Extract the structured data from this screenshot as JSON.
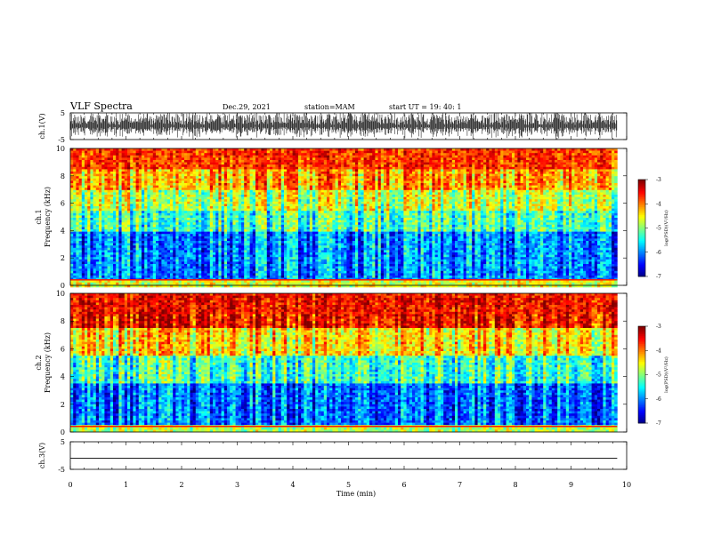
{
  "header": {
    "title": "VLF Spectra",
    "date": "Dec.29, 2021",
    "station": "station=MAM",
    "start_ut": "start UT =  19: 40: 1"
  },
  "chart_data": [
    {
      "type": "line",
      "name": "ch1_waveform",
      "ylabel": "ch.1(V)",
      "ylim": [
        -5,
        5
      ],
      "yticks": [
        5,
        -5
      ],
      "x_range": [
        0,
        9.83
      ],
      "xlim": [
        0,
        10
      ],
      "note_values": "dense impulsive sferic waveform spanning roughly -5 to +5 V"
    },
    {
      "type": "heatmap",
      "name": "ch1_spectrogram",
      "ylabel": "ch.1\nFrequency (kHz)",
      "ylim": [
        0,
        10
      ],
      "yticks": [
        0,
        2,
        4,
        6,
        8,
        10
      ],
      "xlim": [
        0,
        10
      ],
      "x_range": [
        0,
        9.83
      ],
      "bands": [
        {
          "from_khz": 0,
          "to_khz": 0.5,
          "log_psd": -4.6
        },
        {
          "from_khz": 0.5,
          "to_khz": 4,
          "log_psd": -6.0
        },
        {
          "from_khz": 4,
          "to_khz": 5.5,
          "log_psd": -5.3
        },
        {
          "from_khz": 5.5,
          "to_khz": 7,
          "log_psd": -4.8
        },
        {
          "from_khz": 7,
          "to_khz": 8.5,
          "log_psd": -4.2
        },
        {
          "from_khz": 8.5,
          "to_khz": 10,
          "log_psd": -3.7
        }
      ],
      "colorbar": {
        "label": "log(PSD)(V²/Hz)",
        "range": [
          -7,
          -3
        ],
        "ticks": [
          -3,
          -4,
          -5,
          -6,
          -7
        ]
      }
    },
    {
      "type": "heatmap",
      "name": "ch2_spectrogram",
      "ylabel": "ch.2\nFrequency (kHz)",
      "ylim": [
        0,
        10
      ],
      "yticks": [
        0,
        2,
        4,
        6,
        8,
        10
      ],
      "xlim": [
        0,
        10
      ],
      "x_range": [
        0,
        9.83
      ],
      "bands": [
        {
          "from_khz": 0,
          "to_khz": 0.5,
          "log_psd": -4.8
        },
        {
          "from_khz": 0.5,
          "to_khz": 3.5,
          "log_psd": -6.1
        },
        {
          "from_khz": 3.5,
          "to_khz": 5.5,
          "log_psd": -5.3
        },
        {
          "from_khz": 5.5,
          "to_khz": 7.5,
          "log_psd": -4.4
        },
        {
          "from_khz": 7.5,
          "to_khz": 10,
          "log_psd": -3.5
        }
      ],
      "colorbar": {
        "label": "log(PSD)(V²/Hz)",
        "range": [
          -7,
          -3
        ],
        "ticks": [
          -3,
          -4,
          -5,
          -6,
          -7
        ]
      }
    },
    {
      "type": "line",
      "name": "ch3_waveform",
      "ylabel": "ch.3(V)",
      "ylim": [
        -5,
        5
      ],
      "yticks": [
        5,
        -5
      ],
      "xlim": [
        0,
        10
      ],
      "x": [
        0,
        9.83
      ],
      "y": [
        -1,
        -1
      ]
    }
  ],
  "xaxis": {
    "label": "Time (min)",
    "ticks": [
      0,
      1,
      2,
      3,
      4,
      5,
      6,
      7,
      8,
      9,
      10
    ]
  }
}
